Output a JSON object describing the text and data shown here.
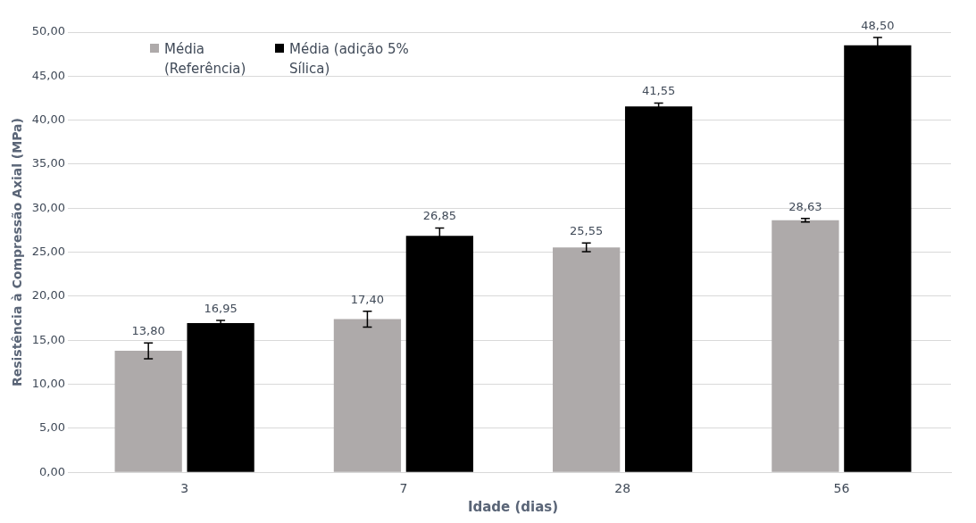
{
  "chart_data": {
    "type": "bar",
    "xlabel": "Idade (dias)",
    "ylabel": "Resistência à Compressão Axial (MPa)",
    "categories": [
      "3",
      "7",
      "28",
      "56"
    ],
    "series": [
      {
        "name": "Média (Referência)",
        "color": "#aeaaaa",
        "values": [
          13.8,
          17.4,
          25.55,
          28.63
        ],
        "value_labels": [
          "13,80",
          "17,40",
          "25,55",
          "28,63"
        ],
        "errors": [
          0.9,
          0.9,
          0.5,
          0.2
        ]
      },
      {
        "name": "Média (adição 5% Sílica)",
        "color": "#000000",
        "values": [
          16.95,
          26.85,
          41.55,
          48.5
        ],
        "value_labels": [
          "16,95",
          "26,85",
          "41,55",
          "48,50"
        ],
        "errors": [
          0.3,
          0.9,
          0.4,
          0.9
        ]
      }
    ],
    "ylim": [
      0,
      50
    ],
    "yticks": [
      {
        "value": 0,
        "label": "0,00"
      },
      {
        "value": 5,
        "label": "5,00"
      },
      {
        "value": 10,
        "label": "10,00"
      },
      {
        "value": 15,
        "label": "15,00"
      },
      {
        "value": 20,
        "label": "20,00"
      },
      {
        "value": 25,
        "label": "25,00"
      },
      {
        "value": 30,
        "label": "30,00"
      },
      {
        "value": 35,
        "label": "35,00"
      },
      {
        "value": 40,
        "label": "40,00"
      },
      {
        "value": 45,
        "label": "45,00"
      },
      {
        "value": 50,
        "label": "50,00"
      }
    ],
    "grid": "y",
    "legend": "top left"
  }
}
